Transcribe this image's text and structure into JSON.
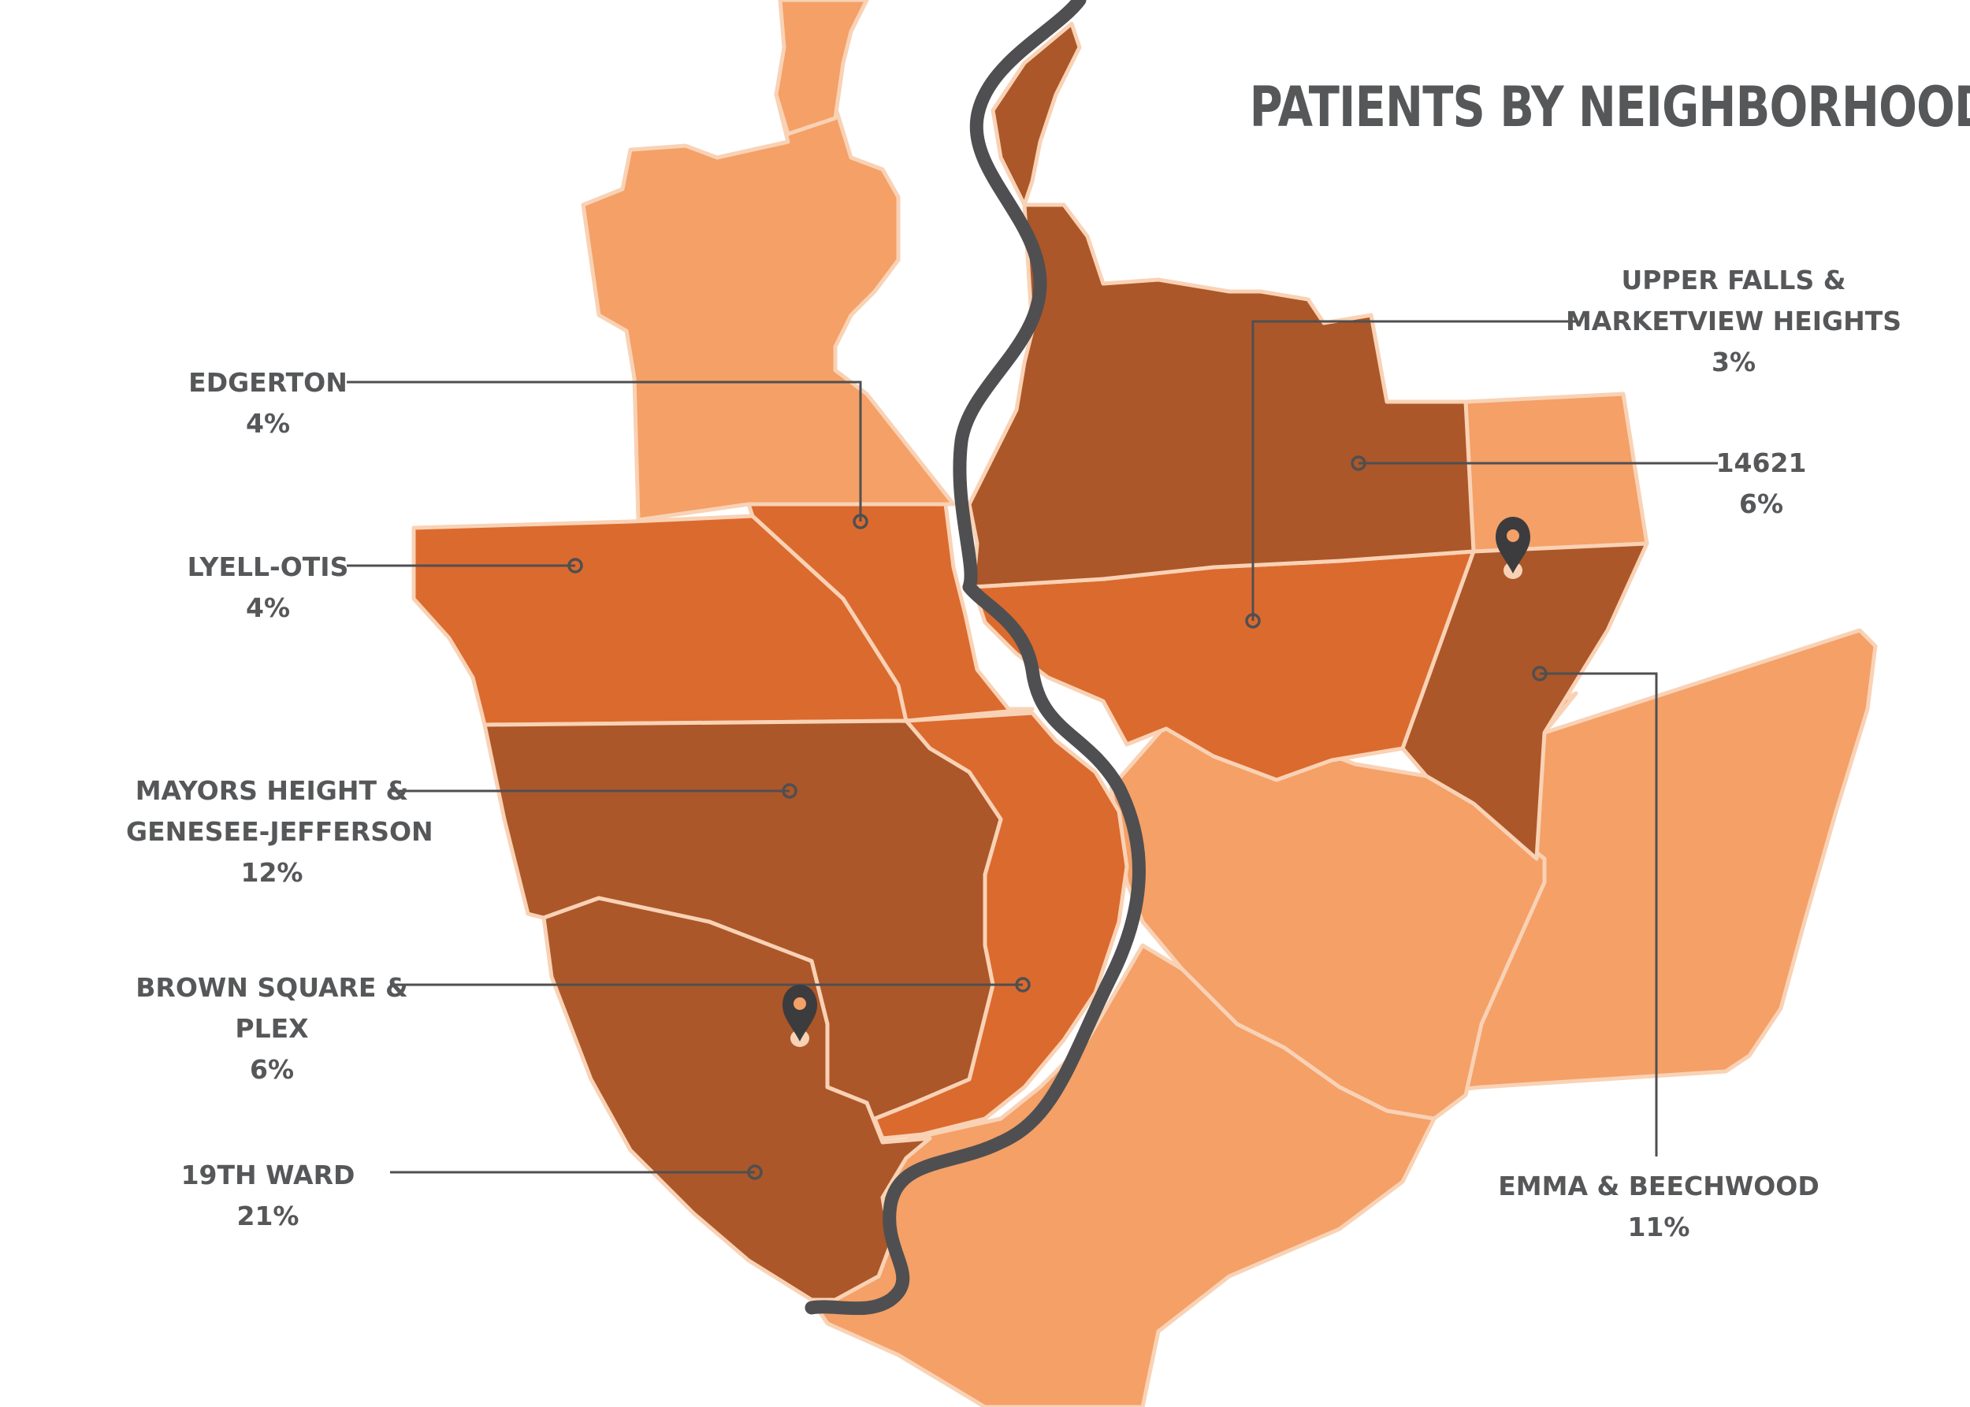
{
  "title": "PATIENTS BY NEIGHBORHOOD",
  "colors": {
    "low": "#f4a067",
    "medium": "#db6a2e",
    "high": "#ac5729",
    "border": "#f9d2b5",
    "river": "#4f4f51",
    "text": "#565759"
  },
  "pin_icon": "map-pin-icon",
  "neighborhoods": [
    {
      "id": "edgerton",
      "name": "EDGERTON",
      "name_line2": "",
      "share": "4%"
    },
    {
      "id": "lyell-otis",
      "name": "LYELL-OTIS",
      "name_line2": "",
      "share": "4%"
    },
    {
      "id": "mayors-height",
      "name": "MAYORS HEIGHT &",
      "name_line2": "GENESEE-JEFFERSON",
      "share": "12%"
    },
    {
      "id": "brown-square",
      "name": "BROWN SQUARE &",
      "name_line2": "PLEX",
      "share": "6%"
    },
    {
      "id": "19th-ward",
      "name": "19TH WARD",
      "name_line2": "",
      "share": "21%"
    },
    {
      "id": "upper-falls",
      "name": "UPPER FALLS &",
      "name_line2": "MARKETVIEW HEIGHTS",
      "share": "3%"
    },
    {
      "id": "14621",
      "name": "14621",
      "name_line2": "",
      "share": "6%"
    },
    {
      "id": "emma-beechwood",
      "name": "EMMA & BEECHWOOD",
      "name_line2": "",
      "share": "11%"
    }
  ]
}
